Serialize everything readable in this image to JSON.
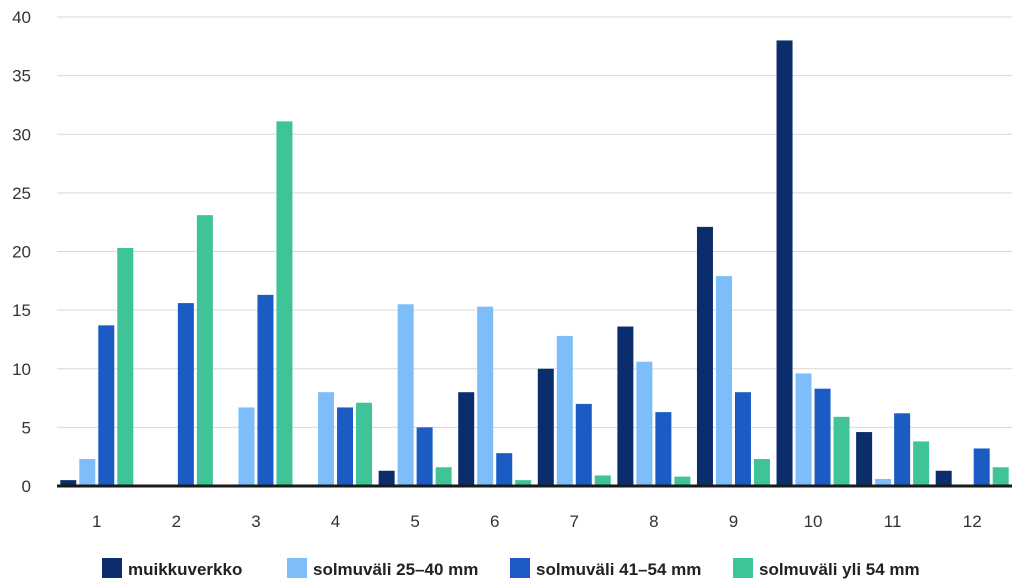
{
  "chart_data": {
    "type": "bar",
    "categories": [
      "1",
      "2",
      "3",
      "4",
      "5",
      "6",
      "7",
      "8",
      "9",
      "10",
      "11",
      "12"
    ],
    "series": [
      {
        "name": "muikkuverkko",
        "color": "#0b2d6b",
        "values": [
          0.5,
          0,
          0,
          0,
          1.3,
          8.0,
          10.0,
          13.6,
          22.1,
          38.0,
          4.6,
          1.3
        ]
      },
      {
        "name": "solmuväli 25–40 mm",
        "color": "#7dbdfa",
        "values": [
          2.3,
          0,
          6.7,
          8.0,
          15.5,
          15.3,
          12.8,
          10.6,
          17.9,
          9.6,
          0.6,
          0
        ]
      },
      {
        "name": "solmuväli 41–54 mm",
        "color": "#1a5cc4",
        "values": [
          13.7,
          15.6,
          16.3,
          6.7,
          5.0,
          2.8,
          7.0,
          6.3,
          8.0,
          8.3,
          6.2,
          3.2
        ]
      },
      {
        "name": "solmuväli yli 54 mm",
        "color": "#3ec496",
        "values": [
          20.3,
          23.1,
          31.1,
          7.1,
          1.6,
          0.5,
          0.9,
          0.8,
          2.3,
          5.9,
          3.8,
          1.6
        ]
      }
    ],
    "ylim": [
      0,
      40
    ],
    "yticks": [
      0,
      5,
      10,
      15,
      20,
      25,
      30,
      35,
      40
    ],
    "grid": true,
    "legend_position": "bottom"
  }
}
